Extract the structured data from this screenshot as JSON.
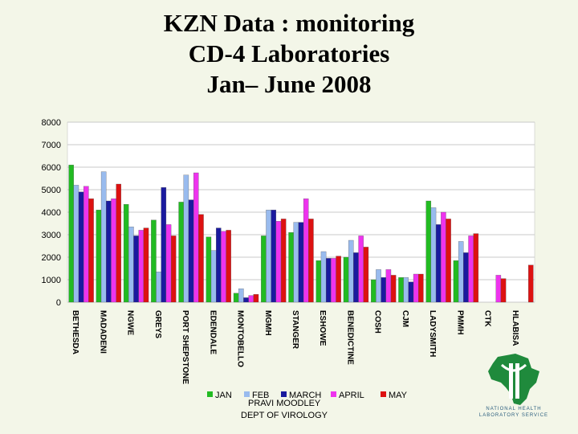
{
  "title_lines": [
    "KZN Data : monitoring",
    "CD-4 Laboratories",
    "Jan– June 2008"
  ],
  "footer": {
    "author": "PRAVI MOODLEY",
    "dept": "DEPT OF VIROLOGY"
  },
  "logo": {
    "text_line1": "NATIONAL HEALTH",
    "text_line2": "LABORATORY SERVICE"
  },
  "chart_data": {
    "type": "bar",
    "title": "",
    "xlabel": "",
    "ylabel": "",
    "ylim": [
      0,
      8000
    ],
    "yticks": [
      0,
      1000,
      2000,
      3000,
      4000,
      5000,
      6000,
      7000,
      8000
    ],
    "grid": true,
    "legend_position": "bottom",
    "categories": [
      "BETHESDA",
      "MADADENI",
      "NGWE",
      "GREYS",
      "PORT SHEPSTONE",
      "EDENDALE",
      "MONTOBELLO",
      "MGMH",
      "STANGER",
      "ESHOWE",
      "BENEDICTINE",
      "COSH",
      "CJM",
      "LADYSMITH",
      "PMMH",
      "CTK",
      "HLABISA"
    ],
    "series": [
      {
        "name": "JAN",
        "color": "#22bb22",
        "values": [
          6100,
          4100,
          4350,
          3650,
          4450,
          2900,
          400,
          2950,
          3100,
          1850,
          2000,
          1000,
          1100,
          4500,
          1850,
          0,
          0
        ]
      },
      {
        "name": "FEB",
        "color": "#99bbee",
        "values": [
          5200,
          5800,
          3350,
          1350,
          5650,
          2300,
          600,
          4100,
          3550,
          2250,
          2750,
          1450,
          1100,
          4200,
          2700,
          0,
          0
        ]
      },
      {
        "name": "MARCH",
        "color": "#1a1a9e",
        "values": [
          4900,
          4500,
          2950,
          5100,
          4550,
          3300,
          200,
          4100,
          3550,
          1950,
          2200,
          1100,
          900,
          3450,
          2200,
          0,
          0
        ]
      },
      {
        "name": "APRIL",
        "color": "#ee33ee",
        "values": [
          5150,
          4600,
          3200,
          3450,
          5750,
          3150,
          300,
          3600,
          4600,
          1950,
          2950,
          1450,
          1250,
          4000,
          2950,
          1200,
          0
        ]
      },
      {
        "name": "MAY",
        "color": "#dd1111",
        "values": [
          4600,
          5250,
          3300,
          2950,
          3900,
          3200,
          350,
          3700,
          3700,
          2050,
          2450,
          1200,
          1250,
          3700,
          3050,
          1050,
          1650
        ]
      }
    ]
  }
}
